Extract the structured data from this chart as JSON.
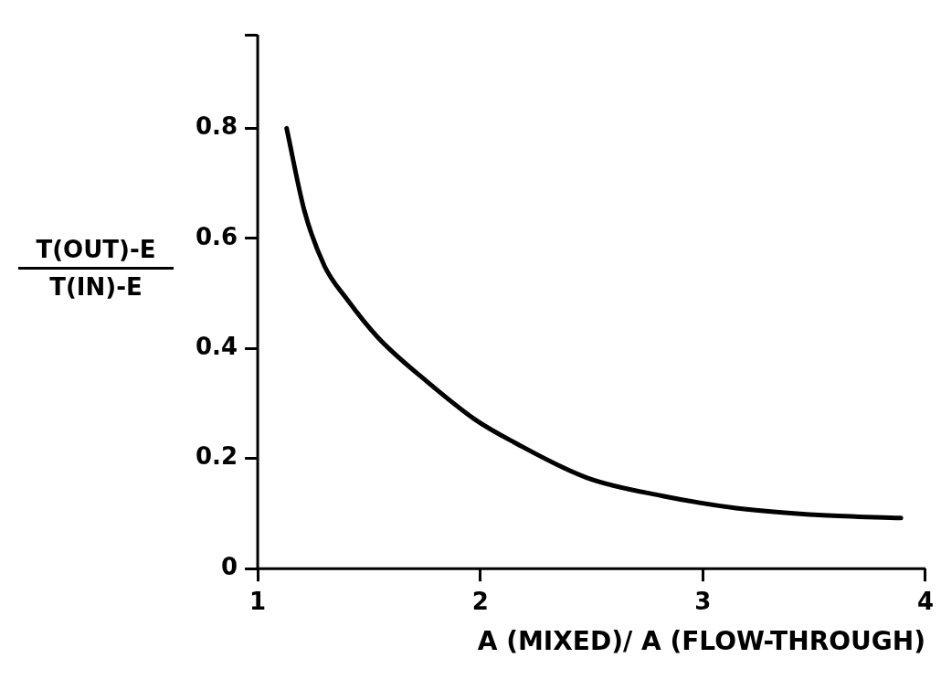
{
  "chart_data": {
    "type": "line",
    "xlabel": "A (MIXED)/ A (FLOW-THROUGH)",
    "ylabel": "T(OUT)-E\nT(IN)-E",
    "x": [
      1.13,
      1.21,
      1.3,
      1.4,
      1.54,
      1.76,
      1.98,
      2.15,
      2.48,
      2.82,
      3.15,
      3.54,
      3.89
    ],
    "series": [
      {
        "color": "#000000",
        "values": [
          0.8,
          0.65,
          0.55,
          0.49,
          0.42,
          0.34,
          0.27,
          0.23,
          0.165,
          0.132,
          0.11,
          0.097,
          0.092
        ]
      }
    ],
    "xlim": [
      1,
      4
    ],
    "xticks": [
      1,
      2,
      3,
      4
    ],
    "ylim": [
      0,
      0.97
    ],
    "yticks": [
      0,
      {
        "value": 0.2,
        "label": "0.2"
      },
      {
        "value": 0.4,
        "label": "0.4"
      },
      {
        "value": 0.6,
        "label": "0.6"
      },
      {
        "value": 0.8,
        "label": "0.8"
      },
      {
        "value": 0.97,
        "label": null
      }
    ],
    "grid": false,
    "legend": false,
    "marker": "none",
    "line_style": "solid"
  }
}
